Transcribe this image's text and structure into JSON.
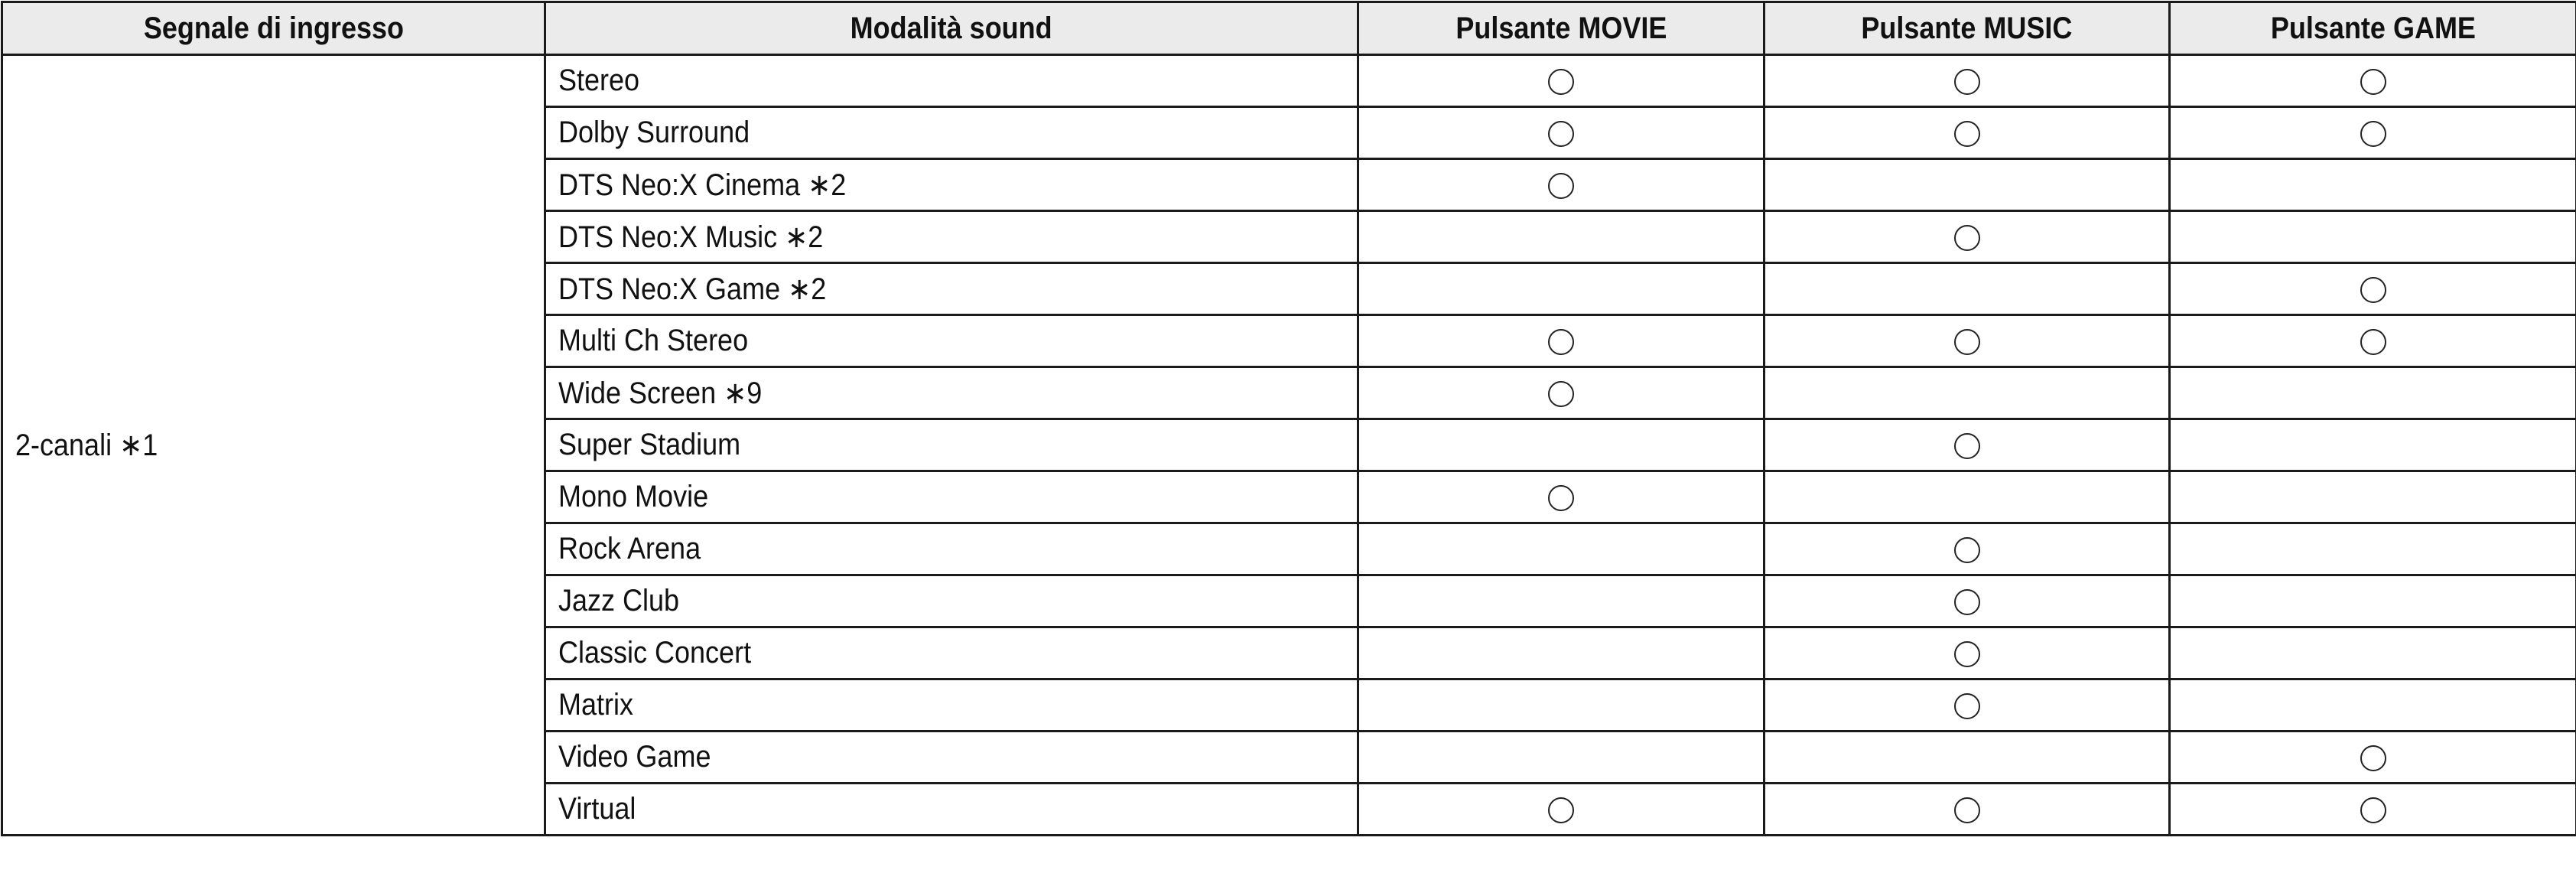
{
  "headers": [
    "Segnale di ingresso",
    "Modalità sound",
    "Pulsante MOVIE",
    "Pulsante MUSIC",
    "Pulsante GAME"
  ],
  "input_signal": "2-canali ∗1",
  "mark_icon": "circle-icon",
  "rows": [
    {
      "mode": "Stereo",
      "movie": true,
      "music": true,
      "game": true
    },
    {
      "mode": "Dolby Surround",
      "movie": true,
      "music": true,
      "game": true
    },
    {
      "mode": "DTS Neo:X Cinema ∗2",
      "movie": true,
      "music": false,
      "game": false
    },
    {
      "mode": "DTS Neo:X Music ∗2",
      "movie": false,
      "music": true,
      "game": false
    },
    {
      "mode": "DTS Neo:X Game ∗2",
      "movie": false,
      "music": false,
      "game": true
    },
    {
      "mode": "Multi Ch Stereo",
      "movie": true,
      "music": true,
      "game": true
    },
    {
      "mode": "Wide Screen ∗9",
      "movie": true,
      "music": false,
      "game": false
    },
    {
      "mode": "Super Stadium",
      "movie": false,
      "music": true,
      "game": false
    },
    {
      "mode": "Mono Movie",
      "movie": true,
      "music": false,
      "game": false
    },
    {
      "mode": "Rock Arena",
      "movie": false,
      "music": true,
      "game": false
    },
    {
      "mode": "Jazz Club",
      "movie": false,
      "music": true,
      "game": false
    },
    {
      "mode": "Classic Concert",
      "movie": false,
      "music": true,
      "game": false
    },
    {
      "mode": "Matrix",
      "movie": false,
      "music": true,
      "game": false
    },
    {
      "mode": "Video Game",
      "movie": false,
      "music": false,
      "game": true
    },
    {
      "mode": "Virtual",
      "movie": true,
      "music": true,
      "game": true
    }
  ],
  "colors": {
    "header_bg": "#ebebeb",
    "border": "#1a1a1a"
  }
}
